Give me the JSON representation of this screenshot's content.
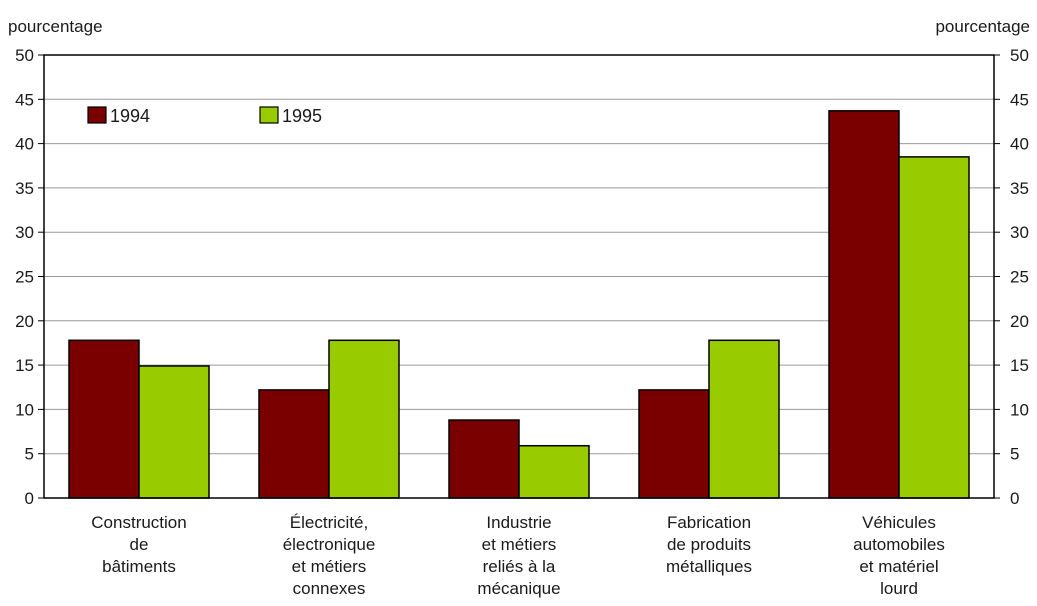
{
  "chart_data": {
    "type": "bar",
    "y_axis_label_left": "pourcentage",
    "y_axis_label_right": "pourcentage",
    "ylim": [
      0,
      50
    ],
    "yticks": [
      0,
      5,
      10,
      15,
      20,
      25,
      30,
      35,
      40,
      45,
      50
    ],
    "grid": true,
    "legend_position": "top-left",
    "categories": [
      [
        "Construction",
        "de",
        "bâtiments"
      ],
      [
        "Électricité,",
        "électronique",
        "et métiers",
        "connexes"
      ],
      [
        "Industrie",
        "et métiers",
        "reliés à la",
        "mécanique"
      ],
      [
        "Fabrication",
        "de produits",
        "métalliques"
      ],
      [
        "Véhicules",
        "automobiles",
        "et matériel",
        "lourd"
      ]
    ],
    "series": [
      {
        "name": "1994",
        "color": "#7a0000",
        "values": [
          17.8,
          12.2,
          8.8,
          12.2,
          43.7
        ]
      },
      {
        "name": "1995",
        "color": "#99cc00",
        "values": [
          14.9,
          17.8,
          5.9,
          17.8,
          38.5
        ]
      }
    ]
  }
}
